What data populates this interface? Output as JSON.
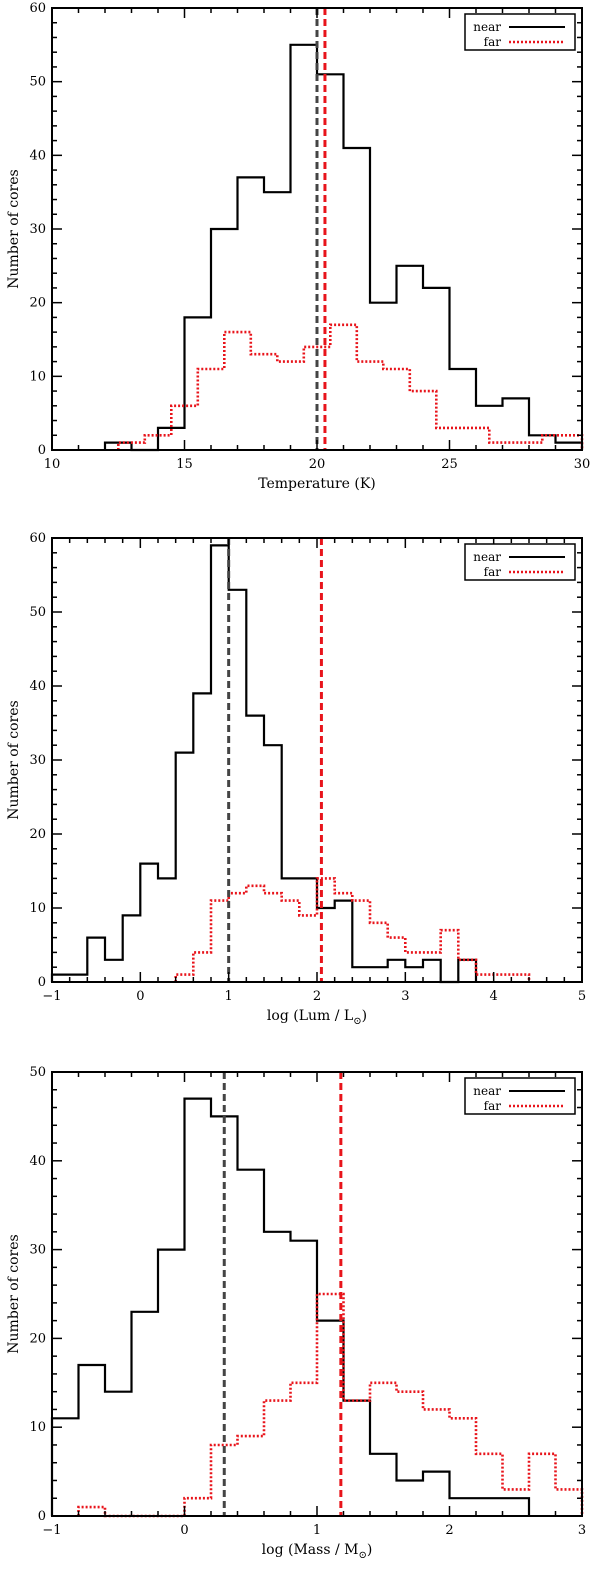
{
  "chart_data": [
    {
      "type": "histogram",
      "xlabel": "Temperature (K)",
      "ylabel": "Number of cores",
      "xlim": [
        10,
        30
      ],
      "ylim": [
        0,
        60
      ],
      "xticks": [
        10,
        15,
        20,
        25,
        30
      ],
      "xtick_labels": [
        "10",
        "15",
        "20",
        "25",
        "30"
      ],
      "yticks": [
        0,
        10,
        20,
        30,
        40,
        50,
        60
      ],
      "ytick_labels": [
        "0",
        "10",
        "20",
        "30",
        "40",
        "50",
        "60"
      ],
      "legend_position": "top-right",
      "series": [
        {
          "name": "near",
          "color": "#000000",
          "style": "solid",
          "bin_edges": [
            12,
            13,
            14,
            15,
            16,
            17,
            18,
            19,
            20,
            21,
            22,
            23,
            24,
            25,
            26,
            27,
            28,
            29,
            30
          ],
          "counts": [
            1,
            0,
            3,
            18,
            30,
            37,
            35,
            55,
            51,
            41,
            20,
            25,
            22,
            11,
            6,
            7,
            2,
            1
          ],
          "median": 20.0
        },
        {
          "name": "far",
          "color": "#e8141b",
          "style": "dotted",
          "bin_edges": [
            12.5,
            13.5,
            14.5,
            15.5,
            16.5,
            17.5,
            18.5,
            19.5,
            20.5,
            21.5,
            22.5,
            23.5,
            24.5,
            25.5,
            26.5,
            27.5,
            28.5,
            29.5,
            30
          ],
          "counts": [
            1,
            2,
            6,
            11,
            16,
            13,
            12,
            14,
            17,
            12,
            11,
            8,
            3,
            3,
            1,
            1,
            2,
            2
          ],
          "median": 20.3
        }
      ]
    },
    {
      "type": "histogram",
      "xlabel_prefix": "log (Lum / L",
      "xlabel_sub": "⊙",
      "xlabel_suffix": ")",
      "ylabel": "Number of cores",
      "xlim": [
        -1,
        5
      ],
      "ylim": [
        0,
        60
      ],
      "xticks": [
        -1,
        0,
        1,
        2,
        3,
        4,
        5
      ],
      "xtick_labels": [
        "−1",
        "0",
        "1",
        "2",
        "3",
        "4",
        "5"
      ],
      "yticks": [
        0,
        10,
        20,
        30,
        40,
        50,
        60
      ],
      "ytick_labels": [
        "0",
        "10",
        "20",
        "30",
        "40",
        "50",
        "60"
      ],
      "legend_position": "top-right",
      "series": [
        {
          "name": "near",
          "color": "#000000",
          "style": "solid",
          "bin_edges": [
            -1,
            -0.6,
            -0.4,
            -0.2,
            0,
            0.2,
            0.4,
            0.6,
            0.8,
            1.0,
            1.2,
            1.4,
            1.6,
            1.8,
            2.0,
            2.2,
            2.4,
            2.6,
            2.8,
            3.0,
            3.2,
            3.4,
            3.6,
            3.8
          ],
          "counts": [
            1,
            6,
            3,
            9,
            16,
            14,
            31,
            39,
            59,
            53,
            36,
            32,
            14,
            14,
            10,
            11,
            2,
            2,
            3,
            2,
            3,
            0,
            3
          ],
          "median": 1.0
        },
        {
          "name": "far",
          "color": "#e8141b",
          "style": "dotted",
          "bin_edges": [
            0.4,
            0.6,
            0.8,
            1.0,
            1.2,
            1.4,
            1.6,
            1.8,
            2.0,
            2.2,
            2.4,
            2.6,
            2.8,
            3.0,
            3.2,
            3.4,
            3.6,
            3.8,
            4.0,
            4.2,
            4.4
          ],
          "counts": [
            1,
            4,
            11,
            12,
            13,
            12,
            11,
            9,
            14,
            12,
            11,
            8,
            6,
            4,
            4,
            7,
            3,
            1,
            1,
            1
          ],
          "median": 2.05
        }
      ]
    },
    {
      "type": "histogram",
      "xlabel_prefix": "log (Mass / M",
      "xlabel_sub": "⊙",
      "xlabel_suffix": ")",
      "ylabel": "Number of cores",
      "xlim": [
        -1,
        3
      ],
      "ylim": [
        0,
        50
      ],
      "xticks": [
        -1,
        0,
        1,
        2,
        3
      ],
      "xtick_labels": [
        "−1",
        "0",
        "1",
        "2",
        "3"
      ],
      "yticks": [
        0,
        10,
        20,
        30,
        40,
        50
      ],
      "ytick_labels": [
        "0",
        "10",
        "20",
        "30",
        "40",
        "50"
      ],
      "legend_position": "top-right",
      "series": [
        {
          "name": "near",
          "color": "#000000",
          "style": "solid",
          "bin_edges": [
            -1,
            -0.8,
            -0.6,
            -0.4,
            -0.2,
            0,
            0.2,
            0.4,
            0.6,
            0.8,
            1.0,
            1.2,
            1.4,
            1.6,
            1.8,
            2.0,
            2.2,
            2.4,
            2.6
          ],
          "counts": [
            11,
            17,
            14,
            23,
            30,
            47,
            45,
            39,
            32,
            31,
            22,
            13,
            7,
            4,
            5,
            2,
            2,
            2
          ],
          "median": 0.3
        },
        {
          "name": "far",
          "color": "#e8141b",
          "style": "dotted",
          "bin_edges": [
            -0.8,
            -0.6,
            -0.4,
            -0.2,
            0,
            0.2,
            0.4,
            0.6,
            0.8,
            1.0,
            1.2,
            1.4,
            1.6,
            1.8,
            2.0,
            2.2,
            2.4,
            2.6,
            2.8,
            3.0
          ],
          "counts": [
            1,
            0,
            0,
            0,
            2,
            8,
            9,
            13,
            15,
            25,
            13,
            15,
            14,
            12,
            11,
            7,
            3,
            7,
            3
          ],
          "median": 1.18
        }
      ]
    }
  ]
}
